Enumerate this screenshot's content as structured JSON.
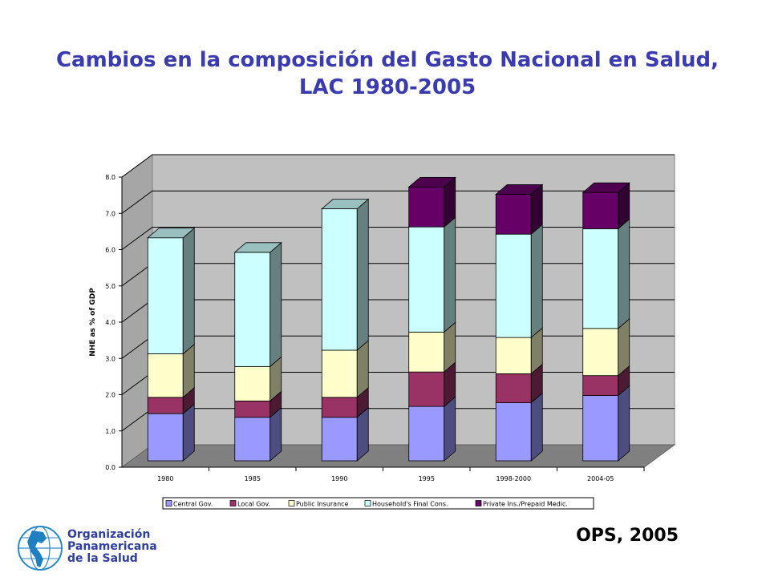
{
  "title": "Cambios en la composición del Gasto Nacional en Salud, LAC 1980-2005",
  "footer": {
    "org_lines": [
      "Organización",
      "Panamericana",
      "de la Salud"
    ],
    "credit": "OPS, 2005"
  },
  "chart_data": {
    "type": "bar",
    "stacked": true,
    "three_d": true,
    "ylabel": "NHE as % of GDP",
    "xlabel": "",
    "ylim": [
      0,
      8
    ],
    "yticks": [
      "0.0",
      "1.0",
      "2.0",
      "3.0",
      "4.0",
      "5.0",
      "6.0",
      "7.0",
      "8.0"
    ],
    "grid": true,
    "legend_position": "bottom",
    "categories": [
      "1980",
      "1985",
      "1990",
      "1995",
      "1998-2000",
      "2004-05"
    ],
    "series": [
      {
        "name": "Central Gov.",
        "color": "#9999ff",
        "values": [
          1.3,
          1.2,
          1.2,
          1.5,
          1.6,
          1.8
        ]
      },
      {
        "name": "Local Gov.",
        "color": "#993366",
        "values": [
          0.45,
          0.45,
          0.55,
          0.95,
          0.8,
          0.55
        ]
      },
      {
        "name": "Public Insurance",
        "color": "#ffffcc",
        "values": [
          1.2,
          0.95,
          1.3,
          1.1,
          1.0,
          1.3
        ]
      },
      {
        "name": "Household's Final Cons.",
        "color": "#ccffff",
        "values": [
          3.2,
          3.15,
          3.9,
          2.9,
          2.85,
          2.75
        ]
      },
      {
        "name": "Private Ins./Prepaid Medic.",
        "color": "#660066",
        "values": [
          0.0,
          0.0,
          0.0,
          1.1,
          1.1,
          1.0
        ]
      }
    ]
  }
}
